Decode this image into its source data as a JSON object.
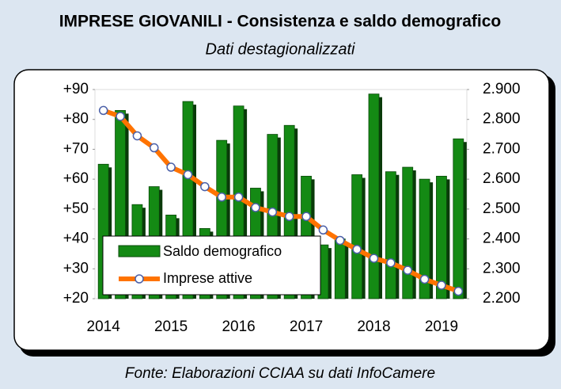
{
  "chart_data": {
    "type": "bar_line",
    "title": "IMPRESE GIOVANILI - Consistenza e saldo demografico",
    "subtitle": "Dati destagionalizzati",
    "source": "Fonte: Elaborazioni CCIAA su dati InfoCamere",
    "categories": [
      "2014",
      null,
      null,
      null,
      "2015",
      null,
      null,
      null,
      "2016",
      null,
      null,
      null,
      "2017",
      null,
      null,
      null,
      "2018",
      null,
      null,
      null,
      "2019",
      null
    ],
    "series": [
      {
        "name": "Saldo demografico",
        "color": "#148a14",
        "values": [
          65,
          83,
          51.5,
          57.5,
          48,
          86,
          43.5,
          73,
          84.5,
          57,
          75,
          78,
          61,
          38,
          40,
          61.5,
          88.5,
          62.5,
          64,
          60,
          61,
          73.5
        ]
      },
      {
        "name": "Imprese attive",
        "color": "#ff7300",
        "axis": "y2",
        "values": [
          2830,
          2810,
          2745,
          2705,
          2640,
          2615,
          2575,
          2540,
          2540,
          2505,
          2490,
          2475,
          2475,
          2430,
          2395,
          2365,
          2335,
          2320,
          2295,
          2265,
          2245,
          2225
        ]
      }
    ],
    "ylim": [
      20,
      90
    ],
    "yticks": [
      {
        "value": 20,
        "label": "+20"
      },
      {
        "value": 30,
        "label": "+30"
      },
      {
        "value": 40,
        "label": "+40"
      },
      {
        "value": 50,
        "label": "+50"
      },
      {
        "value": 60,
        "label": "+60"
      },
      {
        "value": 70,
        "label": "+70"
      },
      {
        "value": 80,
        "label": "+80"
      },
      {
        "value": 90,
        "label": "+90"
      }
    ],
    "y2lim": [
      2200,
      2900
    ],
    "y2ticks": [
      {
        "value": 2200,
        "label": "2.200"
      },
      {
        "value": 2300,
        "label": "2.300"
      },
      {
        "value": 2400,
        "label": "2.400"
      },
      {
        "value": 2500,
        "label": "2.500"
      },
      {
        "value": 2600,
        "label": "2.600"
      },
      {
        "value": 2700,
        "label": "2.700"
      },
      {
        "value": 2800,
        "label": "2.800"
      },
      {
        "value": 2900,
        "label": "2.900"
      }
    ],
    "legend": "lower-left"
  }
}
